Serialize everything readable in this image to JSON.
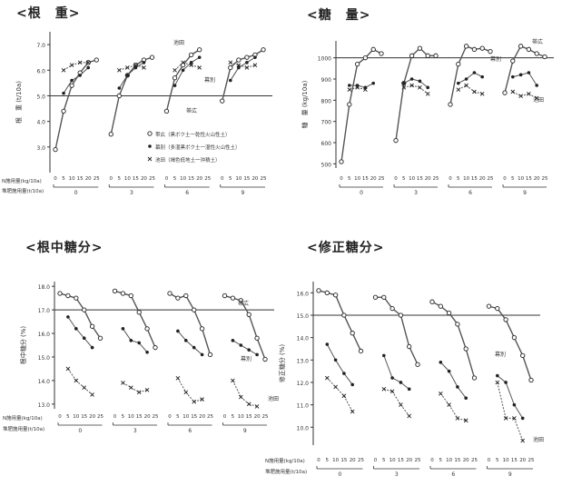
{
  "chart_data": [
    {
      "type": "line",
      "title": "<根　重>",
      "ylabel": "根　重 (t/10a)",
      "ylim": [
        2.0,
        7.5
      ],
      "yticks": [
        3.0,
        4.0,
        5.0,
        6.0,
        7.0
      ],
      "reference_line": 5.0,
      "xlabel_lines": [
        "N施用量(kg/10a)",
        "堆肥施用量(t/10a)"
      ],
      "n_levels": [
        "0",
        "5",
        "10",
        "15",
        "20",
        "25"
      ],
      "groups": [
        "0",
        "3",
        "6",
        "9"
      ],
      "series": [
        {
          "name": "帯広（黒ボク土一乾性火山性土）",
          "style": "open",
          "values": [
            [
              2.9,
              4.4,
              5.4,
              5.9,
              6.3,
              6.4
            ],
            [
              3.5,
              5.0,
              5.8,
              6.2,
              6.4,
              6.5
            ],
            [
              4.4,
              5.7,
              6.2,
              6.6,
              6.8,
              null
            ],
            [
              4.8,
              6.1,
              6.4,
              6.5,
              6.6,
              6.8
            ]
          ]
        },
        {
          "name": "幕別（多湿黒ボク土一湿性火山性土）",
          "style": "filled",
          "values": [
            [
              null,
              5.1,
              5.6,
              5.8,
              6.1,
              null
            ],
            [
              null,
              5.3,
              5.8,
              6.1,
              6.3,
              null
            ],
            [
              null,
              5.4,
              6.0,
              6.3,
              6.5,
              null
            ],
            [
              null,
              5.6,
              6.1,
              6.3,
              6.5,
              null
            ]
          ]
        },
        {
          "name": "池田（褐色低地土一沖積土）",
          "style": "cross",
          "values": [
            [
              null,
              6.0,
              6.2,
              6.3,
              6.3,
              null
            ],
            [
              null,
              6.0,
              6.1,
              6.2,
              6.1,
              null
            ],
            [
              null,
              6.0,
              6.3,
              6.2,
              6.1,
              null
            ],
            [
              null,
              6.3,
              6.2,
              6.1,
              6.2,
              null
            ]
          ]
        }
      ],
      "annotations": [
        "池田",
        "幕別",
        "帯広"
      ]
    },
    {
      "type": "line",
      "title": "<糖　量>",
      "ylabel": "糖　量 (kg/10a)",
      "ylim": [
        480,
        1080
      ],
      "yticks": [
        500,
        600,
        700,
        800,
        900,
        1000
      ],
      "reference_line": 1000,
      "xlabel_lines": [
        "",
        ""
      ],
      "n_levels": [
        "0",
        "5",
        "10",
        "15",
        "20",
        "25"
      ],
      "groups": [
        "0",
        "3",
        "6",
        "9"
      ],
      "series": [
        {
          "name": "帯広",
          "style": "open",
          "values": [
            [
              510,
              780,
              970,
              1000,
              1040,
              1020
            ],
            [
              610,
              880,
              1010,
              1045,
              1010,
              1010
            ],
            [
              780,
              970,
              1055,
              1040,
              1045,
              1030
            ],
            [
              835,
              985,
              1055,
              1040,
              1020,
              1005
            ]
          ]
        },
        {
          "name": "幕別",
          "style": "filled",
          "values": [
            [
              null,
              870,
              870,
              860,
              880,
              null
            ],
            [
              null,
              880,
              900,
              890,
              860,
              null
            ],
            [
              null,
              880,
              900,
              930,
              910,
              null
            ],
            [
              null,
              910,
              920,
              930,
              870,
              null
            ]
          ]
        },
        {
          "name": "池田",
          "style": "cross",
          "values": [
            [
              null,
              850,
              860,
              850,
              null,
              null
            ],
            [
              null,
              860,
              870,
              860,
              830,
              null
            ],
            [
              null,
              850,
              870,
              840,
              830,
              null
            ],
            [
              null,
              840,
              820,
              830,
              810,
              null
            ]
          ]
        }
      ],
      "annotations": [
        "帯広",
        "幕別",
        "池田"
      ]
    },
    {
      "type": "line",
      "title": "<根中糖分>",
      "ylabel": "根中糖分 (%)",
      "ylim": [
        12.8,
        18.2
      ],
      "yticks": [
        13.0,
        14.0,
        15.0,
        16.0,
        17.0,
        18.0
      ],
      "reference_line": 17.0,
      "xlabel_lines": [
        "N施用量(kg/10a)",
        "堆肥施用量(t/10a)"
      ],
      "n_levels": [
        "0",
        "5",
        "10",
        "15",
        "20",
        "25"
      ],
      "groups": [
        "0",
        "3",
        "6",
        "9"
      ],
      "series": [
        {
          "name": "帯広",
          "style": "open",
          "values": [
            [
              17.7,
              17.6,
              17.5,
              17.0,
              16.3,
              15.8
            ],
            [
              17.8,
              17.7,
              17.6,
              16.9,
              16.2,
              15.4
            ],
            [
              17.7,
              17.5,
              17.6,
              17.0,
              16.2,
              15.1
            ],
            [
              17.6,
              17.5,
              17.4,
              16.8,
              15.8,
              14.9
            ]
          ]
        },
        {
          "name": "幕別",
          "style": "filled",
          "values": [
            [
              null,
              16.7,
              16.2,
              15.8,
              15.4,
              null
            ],
            [
              null,
              16.2,
              15.7,
              15.6,
              15.2,
              null
            ],
            [
              null,
              16.1,
              15.7,
              15.4,
              15.1,
              null
            ],
            [
              null,
              15.7,
              15.5,
              15.3,
              15.1,
              null
            ]
          ]
        },
        {
          "name": "池田",
          "style": "cross",
          "values": [
            [
              null,
              14.5,
              14.0,
              13.7,
              13.4,
              null
            ],
            [
              null,
              13.9,
              13.7,
              13.5,
              13.6,
              null
            ],
            [
              null,
              14.1,
              13.5,
              13.1,
              13.2,
              null
            ],
            [
              null,
              14.0,
              13.3,
              13.0,
              12.9,
              null
            ]
          ]
        }
      ],
      "annotations": [
        "帯広",
        "幕別",
        "池田"
      ]
    },
    {
      "type": "line",
      "title": "<修正糖分>",
      "ylabel": "修正糖分 (%)",
      "ylim": [
        9.2,
        16.5
      ],
      "yticks": [
        10.0,
        11.0,
        12.0,
        13.0,
        14.0,
        15.0,
        16.0
      ],
      "reference_line": 15.0,
      "xlabel_lines": [
        "N施用量(kg/10a)",
        "堆肥施用量(t/10a)"
      ],
      "n_levels": [
        "0",
        "5",
        "10",
        "15",
        "20",
        "25"
      ],
      "groups": [
        "0",
        "3",
        "6",
        "9"
      ],
      "series": [
        {
          "name": "帯広",
          "style": "open",
          "values": [
            [
              16.1,
              16.0,
              15.9,
              15.0,
              14.2,
              13.4
            ],
            [
              15.8,
              15.8,
              15.3,
              15.0,
              13.6,
              12.8
            ],
            [
              15.6,
              15.4,
              15.1,
              14.6,
              13.5,
              12.2
            ],
            [
              15.4,
              15.3,
              14.8,
              14.0,
              13.2,
              12.1
            ]
          ]
        },
        {
          "name": "幕別",
          "style": "filled",
          "values": [
            [
              null,
              13.7,
              13.0,
              12.4,
              11.9,
              null
            ],
            [
              null,
              13.2,
              12.2,
              12.0,
              11.7,
              null
            ],
            [
              null,
              12.9,
              12.5,
              11.8,
              11.3,
              null
            ],
            [
              null,
              12.3,
              12.0,
              11.0,
              10.4,
              null
            ]
          ]
        },
        {
          "name": "池田",
          "style": "cross",
          "values": [
            [
              null,
              12.2,
              11.8,
              11.4,
              10.7,
              null
            ],
            [
              null,
              11.7,
              11.6,
              11.0,
              10.5,
              null
            ],
            [
              null,
              11.5,
              11.0,
              10.4,
              10.3,
              null
            ],
            [
              null,
              12.0,
              10.4,
              10.4,
              9.4,
              null
            ]
          ]
        }
      ],
      "annotations": [
        "幕別",
        "池田"
      ]
    }
  ]
}
